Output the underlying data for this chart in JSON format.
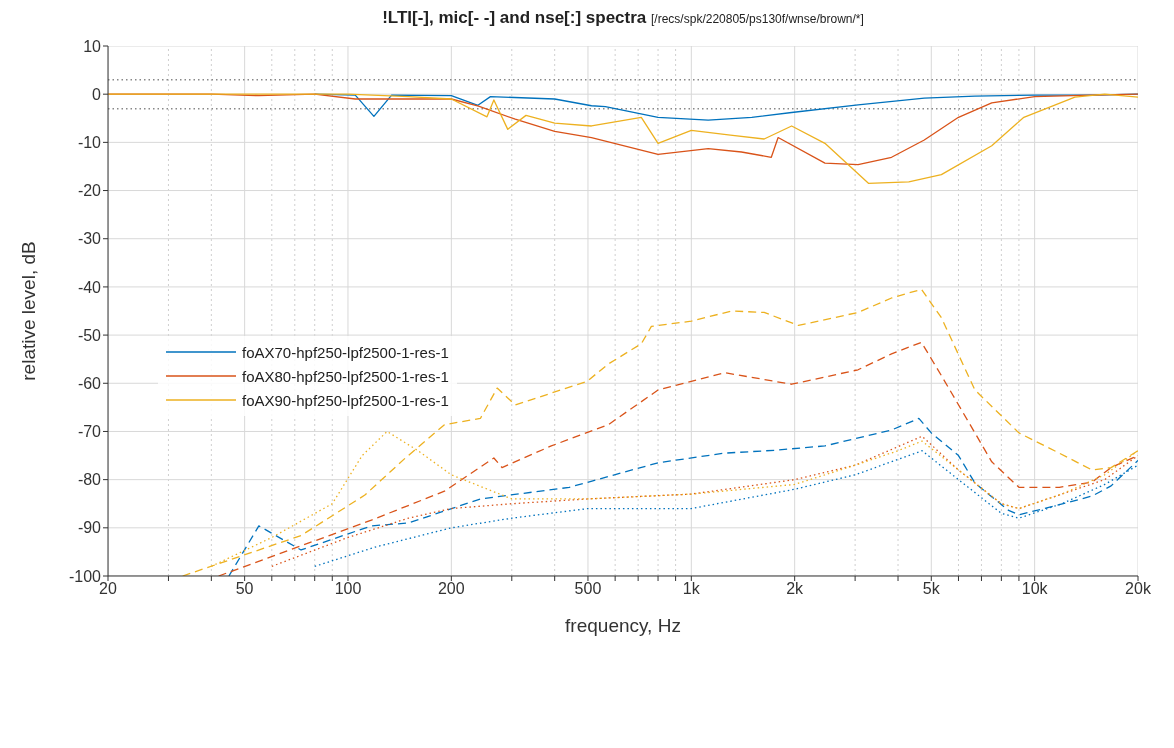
{
  "chart_data": {
    "type": "line",
    "title": "!LTI[-], mic[- -] and nse[:] spectra",
    "subtitle": "[/recs/spk/220805/ps130f/wnse/brown/*]",
    "xlabel": "frequency, Hz",
    "ylabel": "relative level, dB",
    "log": "x",
    "grid": true,
    "legend": "left",
    "xlim": [
      20,
      20000
    ],
    "ylim": [
      -100,
      10
    ],
    "xticks": [
      20,
      {
        "value": 30,
        "label": null
      },
      {
        "value": 40,
        "label": null
      },
      50,
      {
        "value": 60,
        "label": null
      },
      {
        "value": 70,
        "label": null
      },
      {
        "value": 80,
        "label": null
      },
      {
        "value": 90,
        "label": null
      },
      100,
      200,
      {
        "value": 300,
        "label": null
      },
      {
        "value": 400,
        "label": null
      },
      500,
      {
        "value": 600,
        "label": null
      },
      {
        "value": 700,
        "label": null
      },
      {
        "value": 800,
        "label": null
      },
      {
        "value": 900,
        "label": null
      },
      {
        "value": 1000,
        "label": "1k"
      },
      {
        "value": 2000,
        "label": "2k"
      },
      {
        "value": 3000,
        "label": null
      },
      {
        "value": 4000,
        "label": null
      },
      {
        "value": 5000,
        "label": "5k"
      },
      {
        "value": 6000,
        "label": null
      },
      {
        "value": 7000,
        "label": null
      },
      {
        "value": 8000,
        "label": null
      },
      {
        "value": 9000,
        "label": null
      },
      {
        "value": 10000,
        "label": "10k"
      },
      {
        "value": 20000,
        "label": "20k"
      }
    ],
    "yticks": [
      -100,
      -90,
      -80,
      -70,
      -60,
      -50,
      -40,
      -30,
      -20,
      -10,
      0,
      10
    ],
    "ref_lines": [
      {
        "axis": "y",
        "value": 3,
        "label": null,
        "color": "#888888",
        "line_style": "dotted"
      },
      {
        "axis": "y",
        "value": -3,
        "label": null,
        "color": "#888888",
        "line_style": "dotted"
      }
    ],
    "series": [
      {
        "name": "foAX70-hpf250-lpf2500-1-res-1",
        "color": "#0072bd",
        "line_style": "solid",
        "x": [
          80,
          105,
          119,
          134,
          200,
          239,
          260,
          400,
          512,
          562,
          800,
          1120,
          1500,
          1960,
          3060,
          4770,
          6700,
          10000,
          14700,
          20000
        ],
        "values": [
          0,
          -0.2,
          -4.6,
          -0.2,
          -0.3,
          -2.3,
          -0.5,
          -1,
          -2.4,
          -2.6,
          -4.8,
          -5.4,
          -4.8,
          -3.8,
          -2.2,
          -0.8,
          -0.4,
          -0.2,
          -0.2,
          0
        ]
      },
      {
        "name": "foAX80-hpf250-lpf2500-1-res-1",
        "color": "#d95319",
        "line_style": "solid",
        "x": [
          20,
          40,
          55,
          80,
          105,
          200,
          240,
          307,
          400,
          512,
          800,
          1120,
          1400,
          1710,
          1790,
          2450,
          3060,
          3830,
          4770,
          6000,
          7500,
          10000,
          14700,
          20000
        ],
        "values": [
          0,
          0,
          -0.3,
          0,
          -1,
          -1,
          -2.5,
          -5.2,
          -7.7,
          -9,
          -12.5,
          -11.3,
          -12,
          -13.1,
          -9,
          -14.3,
          -14.6,
          -13.1,
          -9.5,
          -4.8,
          -1.8,
          -0.5,
          -0.2,
          0
        ]
      },
      {
        "name": "foAX90-hpf250-lpf2500-1-res-1",
        "color": "#edb120",
        "line_style": "solid",
        "x": [
          20,
          50,
          100,
          150,
          200,
          254,
          266,
          292,
          330,
          400,
          512,
          715,
          800,
          1000,
          1300,
          1630,
          1960,
          2450,
          3280,
          4300,
          5350,
          7500,
          9300,
          13100,
          16000,
          20000
        ],
        "values": [
          0,
          0,
          0,
          -0.5,
          -1,
          -4.7,
          -1.2,
          -7.3,
          -4.4,
          -6,
          -6.6,
          -4.8,
          -10.2,
          -7.5,
          -8.5,
          -9.3,
          -6.6,
          -10.2,
          -18.5,
          -18.2,
          -16.7,
          -10.7,
          -4.8,
          -0.6,
          0,
          -0.6
        ]
      },
      {
        "color": "#0072bd",
        "line_style": "dashed",
        "x": [
          45,
          55,
          73,
          117,
          150,
          243,
          441,
          800,
          1250,
          1750,
          2450,
          3830,
          4600,
          5000,
          6000,
          6700,
          8400,
          9000,
          11800,
          14700,
          16700,
          20000
        ],
        "values": [
          -100,
          -89.6,
          -94.6,
          -89.6,
          -89,
          -84,
          -81.6,
          -76.5,
          -74.5,
          -73.9,
          -73,
          -69.7,
          -67.3,
          -70.3,
          -75,
          -80.7,
          -86.4,
          -87.3,
          -85.2,
          -83.4,
          -81.3,
          -76
        ]
      },
      {
        "color": "#d95319",
        "line_style": "dashed",
        "x": [
          42,
          117,
          191,
          266,
          281,
          391,
          573,
          800,
          1250,
          1960,
          3060,
          3830,
          4680,
          5350,
          6700,
          7500,
          9000,
          11800,
          14700,
          16700,
          20000
        ],
        "values": [
          -100,
          -88.4,
          -82.4,
          -75.5,
          -77.5,
          -73,
          -68.6,
          -61.4,
          -57.8,
          -60.2,
          -57.2,
          -53.9,
          -51.5,
          -58.4,
          -70.3,
          -76.3,
          -81.6,
          -81.6,
          -80.5,
          -77.5,
          -75
        ]
      },
      {
        "color": "#edb120",
        "line_style": "dashed",
        "x": [
          33,
          73,
          112,
          147,
          191,
          243,
          272,
          307,
          497,
          573,
          715,
          765,
          1000,
          1310,
          1630,
          2050,
          3060,
          3830,
          4680,
          5350,
          6700,
          9000,
          11800,
          14700,
          16700,
          20000
        ],
        "values": [
          -100,
          -91.6,
          -83.2,
          -75.5,
          -68.6,
          -67.3,
          -61,
          -64.5,
          -59.6,
          -56,
          -51.8,
          -48.2,
          -47.1,
          -45,
          -45.3,
          -48,
          -45.3,
          -42.3,
          -40.5,
          -46.4,
          -61.4,
          -70.3,
          -74.5,
          -78,
          -77.5,
          -74
        ]
      },
      {
        "color": "#0072bd",
        "line_style": "dotted",
        "x": [
          80,
          120,
          200,
          300,
          500,
          1000,
          2000,
          3000,
          4700,
          6000,
          8000,
          9000,
          12000,
          16000,
          20000
        ],
        "values": [
          -98,
          -94,
          -90,
          -88,
          -86,
          -86,
          -82,
          -79,
          -74,
          -80,
          -87,
          -88,
          -85,
          -81,
          -77
        ]
      },
      {
        "color": "#d95319",
        "line_style": "dotted",
        "x": [
          60,
          100,
          150,
          200,
          300,
          500,
          1000,
          2000,
          3000,
          4700,
          6000,
          8000,
          9000,
          12000,
          16000,
          20000
        ],
        "values": [
          -98,
          -92,
          -88,
          -86,
          -85,
          -84,
          -83,
          -80,
          -77,
          -71,
          -78,
          -85,
          -86,
          -83,
          -80,
          -75
        ]
      },
      {
        "color": "#edb120",
        "line_style": "dotted",
        "x": [
          40,
          60,
          90,
          110,
          130,
          160,
          200,
          300,
          500,
          1000,
          2000,
          3000,
          4000,
          4700,
          6000,
          8000,
          9000,
          12000,
          16000,
          20000
        ],
        "values": [
          -98,
          -92,
          -85,
          -75,
          -70,
          -74,
          -79,
          -84,
          -84,
          -83,
          -81,
          -77,
          -74,
          -72,
          -78,
          -85,
          -86,
          -83,
          -79,
          -74
        ]
      }
    ]
  }
}
